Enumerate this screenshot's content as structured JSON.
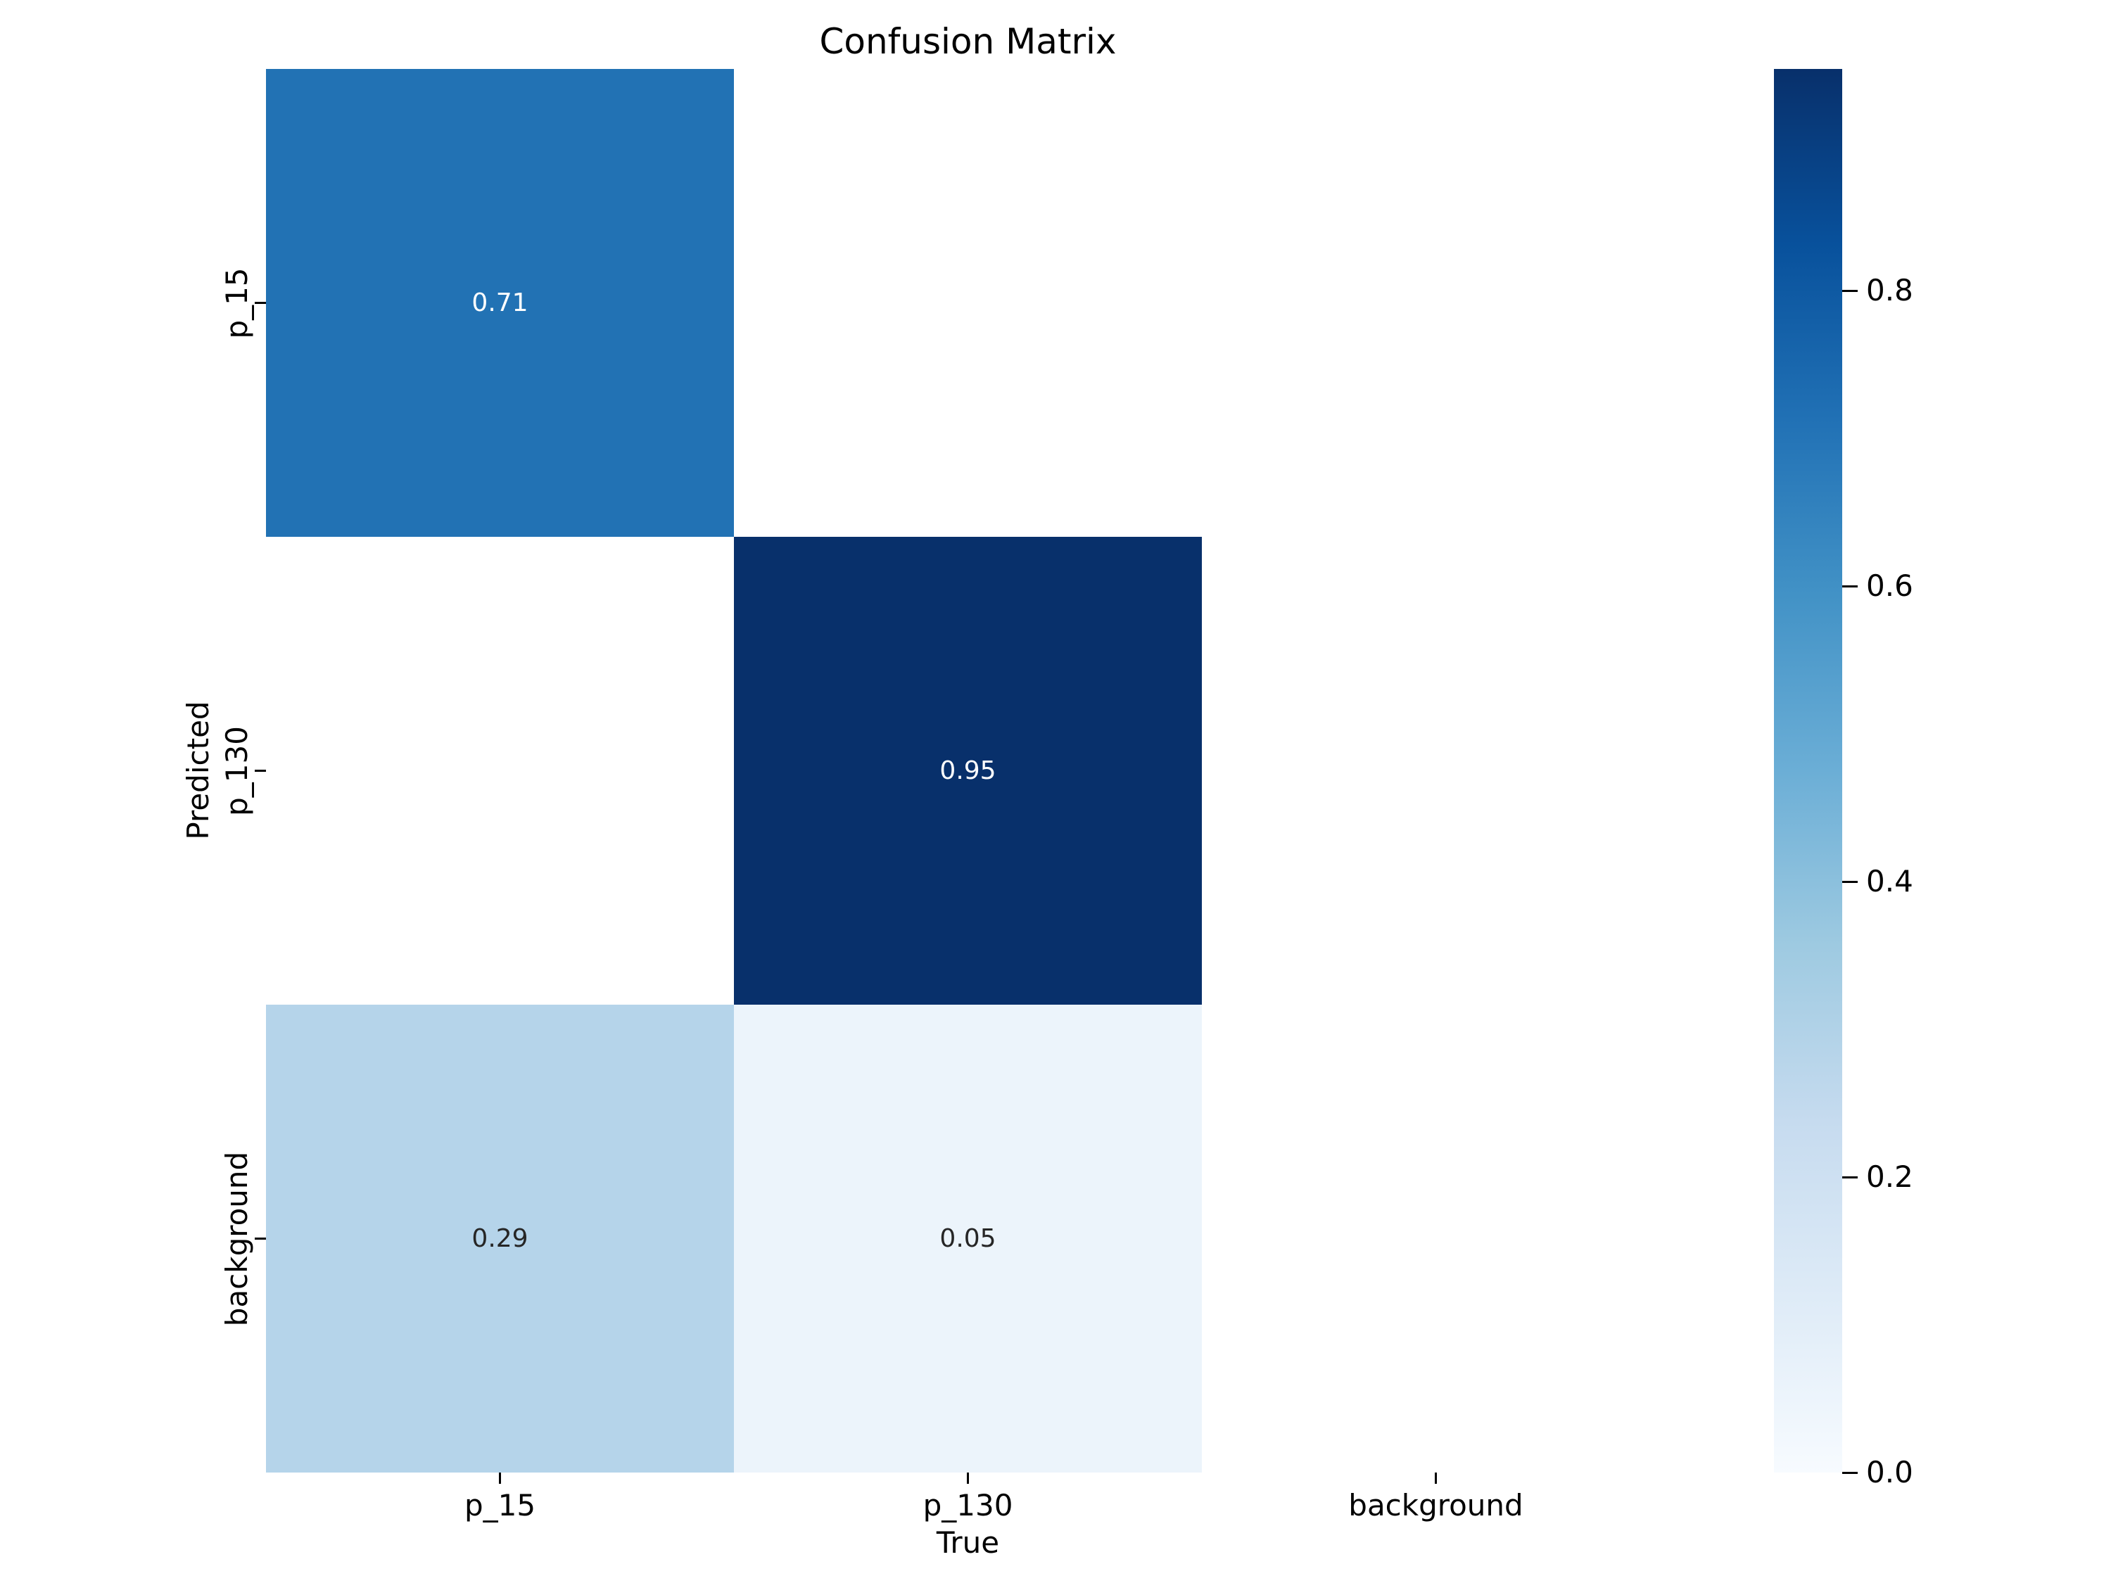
{
  "title": "Confusion Matrix",
  "axes": {
    "xlabel": "True",
    "ylabel": "Predicted"
  },
  "chart_data": {
    "type": "heatmap",
    "title": "Confusion Matrix",
    "xlabel": "True",
    "ylabel": "Predicted",
    "x_categories": [
      "p_15",
      "p_130",
      "background"
    ],
    "y_categories": [
      "p_15",
      "p_130",
      "background"
    ],
    "matrix": [
      [
        0.71,
        null,
        null
      ],
      [
        null,
        0.95,
        null
      ],
      [
        0.29,
        0.05,
        null
      ]
    ],
    "annotations": [
      [
        "0.71",
        "",
        ""
      ],
      [
        "",
        "0.95",
        ""
      ],
      [
        "0.29",
        "0.05",
        ""
      ]
    ],
    "colormap": "Blues",
    "vmin": 0.0,
    "vmax": 0.95,
    "grid": false,
    "legend_position": "right-colorbar",
    "colorbar_ticks": [
      0.8,
      0.6,
      0.4,
      0.2,
      0.0
    ],
    "colorbar_tick_labels": [
      "0.8",
      "0.6",
      "0.4",
      "0.2",
      "0.0"
    ],
    "cell_colors": [
      [
        "#2272b4",
        "#ffffff",
        "#ffffff"
      ],
      [
        "#ffffff",
        "#08306b",
        "#ffffff"
      ],
      [
        "#b5d4ea",
        "#ecf4fb",
        "#ffffff"
      ]
    ],
    "annotation_colors": [
      [
        "#ffffff",
        "",
        ""
      ],
      [
        "",
        "#ffffff",
        ""
      ],
      [
        "#262626",
        "#262626",
        ""
      ]
    ],
    "colorbar_gradient": [
      "#08306b",
      "#08519c",
      "#2171b5",
      "#4292c6",
      "#6baed6",
      "#9ecae1",
      "#c6dbef",
      "#deebf7",
      "#f7fbff"
    ]
  },
  "colors": {
    "background": "#ffffff",
    "text": "#000000",
    "tick": "#000000"
  }
}
